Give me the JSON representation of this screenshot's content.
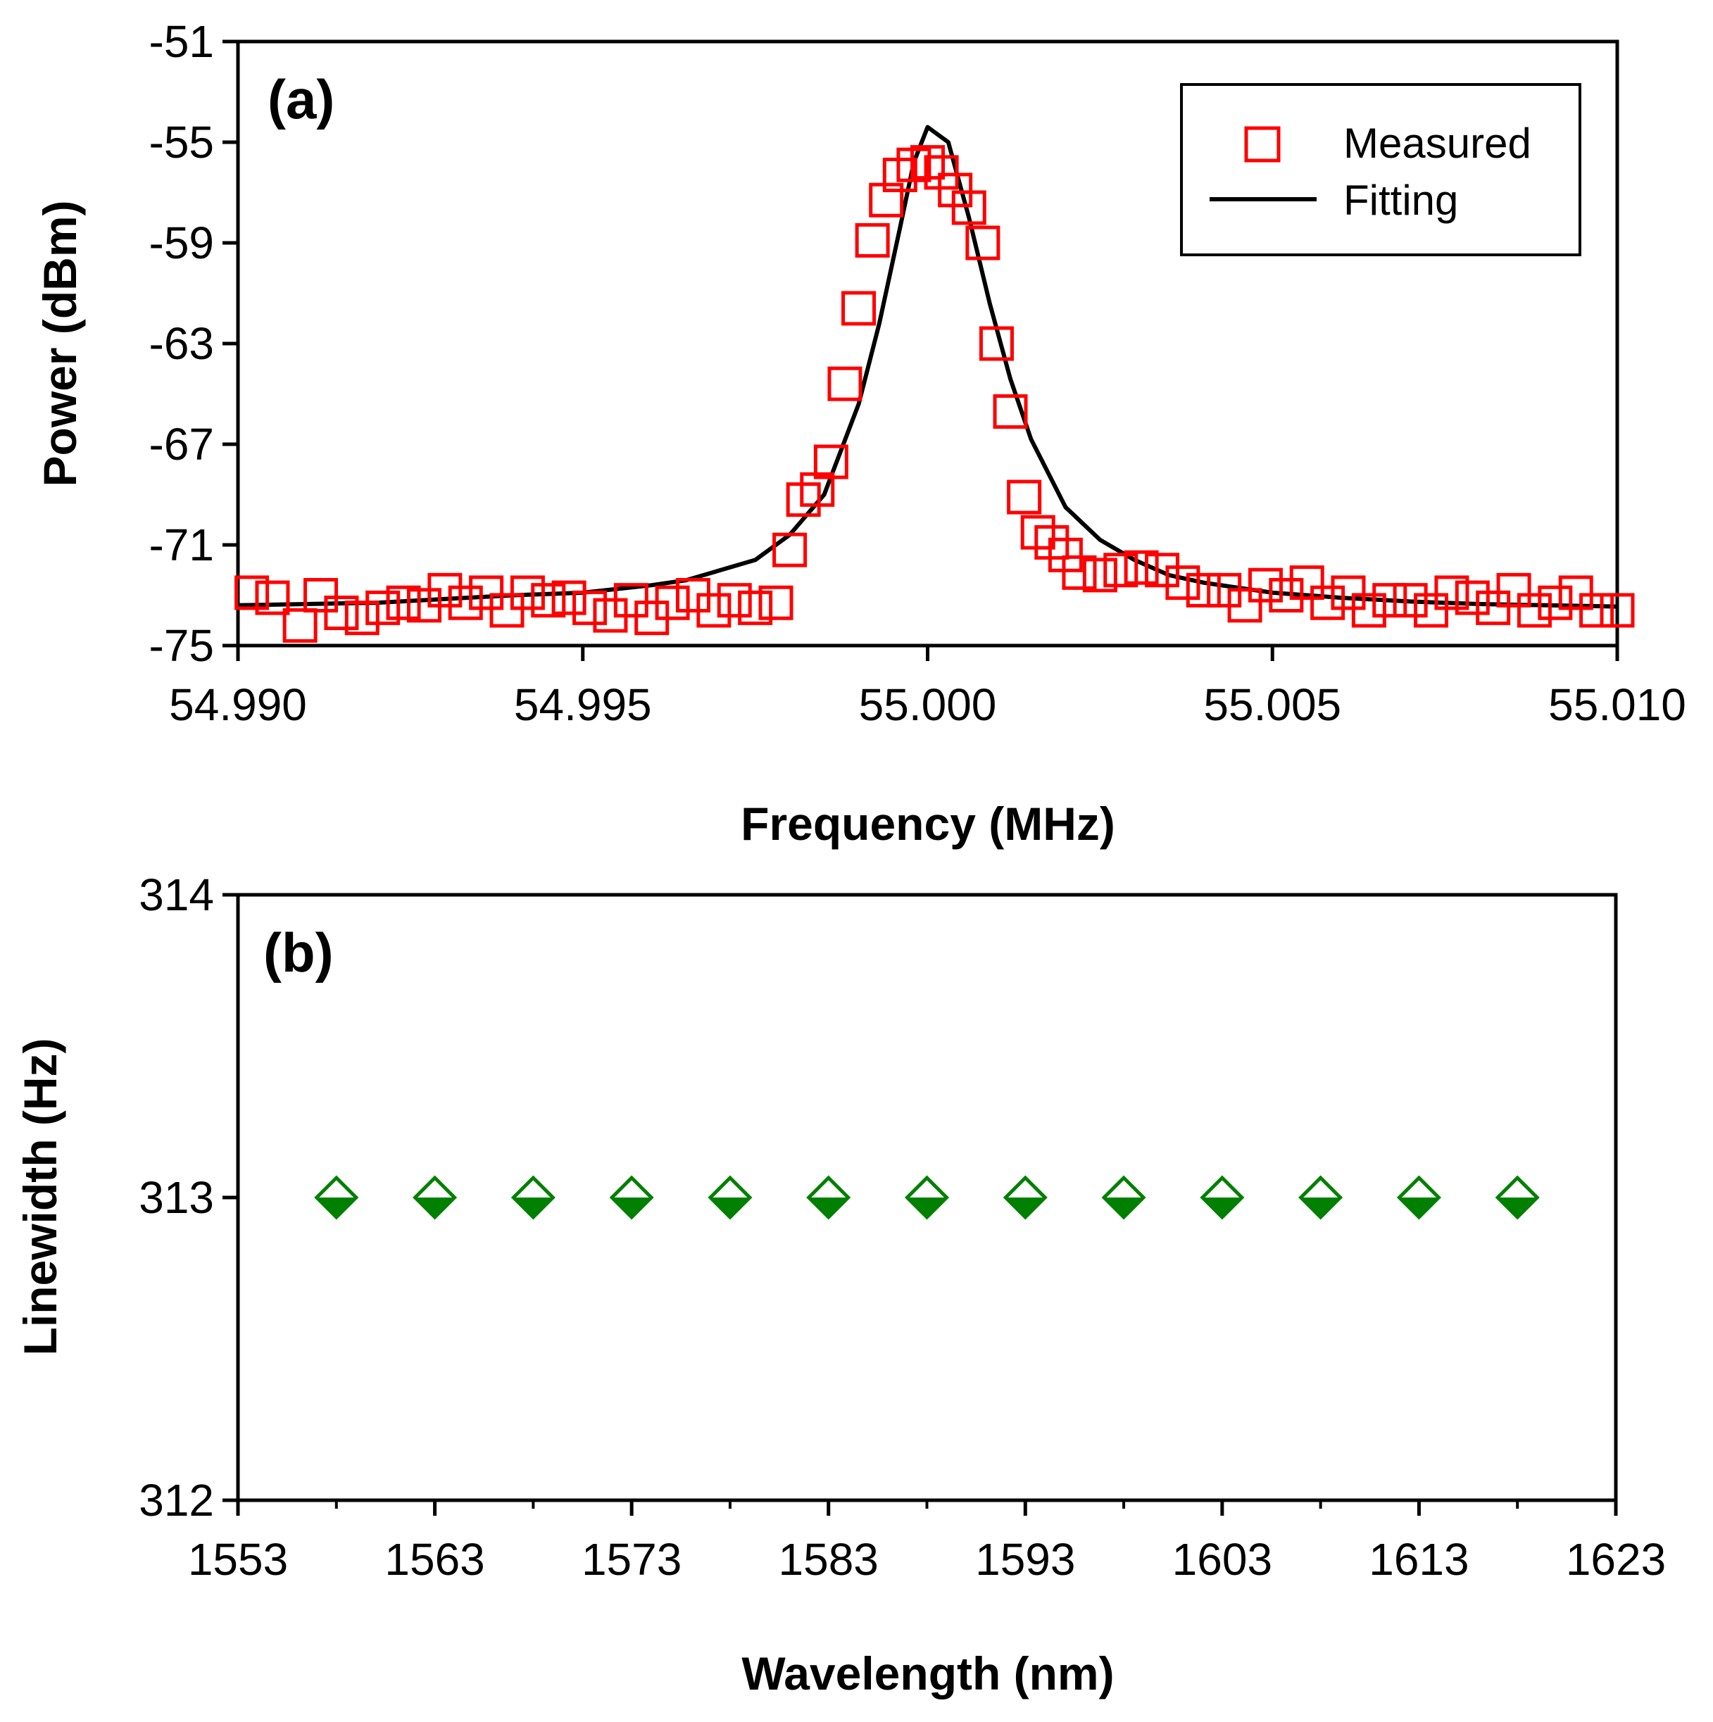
{
  "chart_data": [
    {
      "id": "a",
      "type": "scatter",
      "panel_label": "(a)",
      "xlabel": "Frequency (MHz)",
      "ylabel": "Power (dBm)",
      "xlim": [
        54.99,
        55.01
      ],
      "ylim": [
        -75,
        -51
      ],
      "xticks": [
        54.99,
        54.995,
        55.0,
        55.005,
        55.01
      ],
      "xtick_labels": [
        "54.990",
        "54.995",
        "55.000",
        "55.005",
        "55.010"
      ],
      "yticks": [
        -75,
        -71,
        -67,
        -63,
        -59,
        -55,
        -51
      ],
      "ytick_labels": [
        "-75",
        "-71",
        "-67",
        "-63",
        "-59",
        "-55",
        "-51"
      ],
      "legend_position": "top-right",
      "series": [
        {
          "name": "Measured",
          "kind": "marker-square-open",
          "color": "#ff0000",
          "x": [
            54.9902,
            54.9905,
            54.9909,
            54.9912,
            54.9915,
            54.9918,
            54.9921,
            54.9924,
            54.9927,
            54.993,
            54.9933,
            54.9936,
            54.9939,
            54.9942,
            54.9945,
            54.9948,
            54.9951,
            54.9954,
            54.9957,
            54.996,
            54.9963,
            54.9966,
            54.9969,
            54.9972,
            54.9975,
            54.9978,
            54.998,
            54.9982,
            54.9984,
            54.9986,
            54.9988,
            54.999,
            54.9992,
            54.9994,
            54.9996,
            54.9998,
            55.0,
            55.0002,
            55.0004,
            55.0006,
            55.0008,
            55.001,
            55.0012,
            55.0014,
            55.0016,
            55.0018,
            55.002,
            55.0022,
            55.0025,
            55.0028,
            55.0031,
            55.0034,
            55.0037,
            55.004,
            55.0043,
            55.0046,
            55.0049,
            55.0052,
            55.0055,
            55.0058,
            55.0061,
            55.0064,
            55.0067,
            55.007,
            55.0073,
            55.0076,
            55.0079,
            55.0082,
            55.0085,
            55.0088,
            55.0091,
            55.0094,
            55.0097,
            55.01
          ],
          "y": [
            -72.9,
            -73.1,
            -74.2,
            -73.0,
            -73.7,
            -73.9,
            -73.5,
            -73.3,
            -73.4,
            -72.8,
            -73.3,
            -72.9,
            -73.6,
            -72.9,
            -73.2,
            -73.1,
            -73.5,
            -73.8,
            -73.2,
            -73.9,
            -73.3,
            -73.0,
            -73.6,
            -73.2,
            -73.5,
            -73.3,
            -71.2,
            -69.2,
            -68.8,
            -67.7,
            -64.6,
            -61.6,
            -58.9,
            -57.3,
            -56.3,
            -55.9,
            -55.8,
            -56.2,
            -56.9,
            -57.6,
            -59.0,
            -63.0,
            -65.7,
            -69.1,
            -70.5,
            -70.9,
            -71.4,
            -72.1,
            -72.2,
            -72.0,
            -71.9,
            -72.0,
            -72.5,
            -72.8,
            -72.8,
            -73.4,
            -72.6,
            -73.0,
            -72.5,
            -73.3,
            -72.9,
            -73.6,
            -73.2,
            -73.2,
            -73.6,
            -72.9,
            -73.1,
            -73.5,
            -72.8,
            -73.6,
            -73.3,
            -72.9,
            -73.6,
            -73.6
          ]
        },
        {
          "name": "Fitting",
          "kind": "line",
          "color": "#000000",
          "x": [
            54.99,
            54.992,
            54.994,
            54.995,
            54.996,
            54.9965,
            54.997,
            54.9975,
            54.998,
            54.9985,
            54.999,
            54.9993,
            54.9996,
            54.9998,
            55.0,
            55.0003,
            55.0006,
            55.0009,
            55.0012,
            55.0015,
            55.002,
            55.0025,
            55.003,
            55.0035,
            55.004,
            55.0045,
            55.005,
            55.006,
            55.007,
            55.008,
            55.009,
            55.01
          ],
          "y": [
            -73.4,
            -73.3,
            -73.0,
            -72.9,
            -72.6,
            -72.4,
            -72.0,
            -71.6,
            -70.6,
            -69.0,
            -65.4,
            -62.2,
            -58.4,
            -55.8,
            -54.4,
            -55.0,
            -58.0,
            -61.4,
            -64.4,
            -66.8,
            -69.5,
            -70.8,
            -71.6,
            -72.2,
            -72.5,
            -72.7,
            -72.9,
            -73.1,
            -73.25,
            -73.35,
            -73.4,
            -73.45
          ]
        }
      ]
    },
    {
      "id": "b",
      "type": "scatter",
      "panel_label": "(b)",
      "xlabel": "Wavelength (nm)",
      "ylabel": "Linewidth (Hz)",
      "xlim": [
        1553,
        1623
      ],
      "ylim": [
        312,
        314
      ],
      "xticks": [
        1553,
        1563,
        1573,
        1583,
        1593,
        1603,
        1613,
        1623
      ],
      "xtick_labels": [
        "1553",
        "1563",
        "1573",
        "1583",
        "1593",
        "1603",
        "1613",
        "1623"
      ],
      "yticks": [
        312,
        313,
        314
      ],
      "ytick_labels": [
        "312",
        "313",
        "314"
      ],
      "minor_xticks": [
        1558,
        1568,
        1578,
        1588,
        1598,
        1608,
        1618
      ],
      "series": [
        {
          "name": "Linewidth",
          "kind": "marker-diamond",
          "color": "#008000",
          "x": [
            1558,
            1563,
            1568,
            1573,
            1578,
            1583,
            1588,
            1593,
            1598,
            1603,
            1608,
            1613,
            1618
          ],
          "y": [
            313,
            313,
            313,
            313,
            313,
            313,
            313,
            313,
            313,
            313,
            313,
            313,
            313
          ]
        }
      ]
    }
  ]
}
